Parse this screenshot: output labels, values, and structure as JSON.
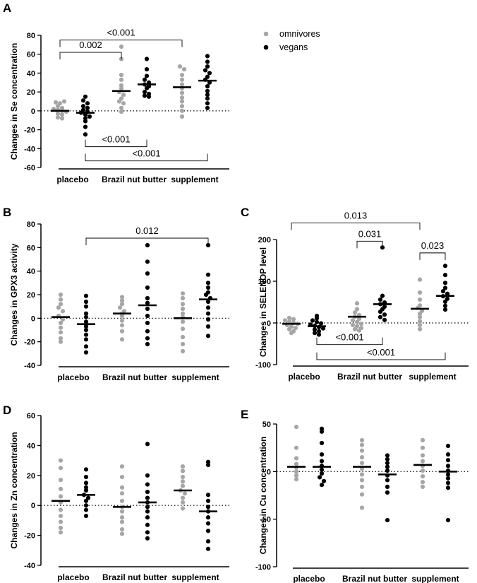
{
  "legend": {
    "entries": [
      {
        "label": "omnivores",
        "color": "#a6a6a6"
      },
      {
        "label": "vegans",
        "color": "#000000"
      }
    ]
  },
  "chart_data": [
    {
      "panel": "A",
      "type": "scatter",
      "ylabel": "Changes in Se concentration",
      "ylim": [
        -60,
        80
      ],
      "yticks": [
        -60,
        -40,
        -20,
        0,
        20,
        40,
        60,
        80
      ],
      "categories": [
        "placebo",
        "Brazil nut butter",
        "supplement"
      ],
      "series": [
        {
          "name": "omnivores",
          "color": "#a6a6a6",
          "medians": [
            0,
            21,
            25
          ],
          "points": [
            [
              9,
              8,
              5,
              3,
              2,
              1,
              0,
              -1,
              -3,
              -4,
              -7,
              -8,
              10
            ],
            [
              68,
              55,
              38,
              33,
              27,
              24,
              20,
              17,
              13,
              10,
              8,
              3,
              -1
            ],
            [
              47,
              44,
              38,
              33,
              28,
              24,
              19,
              14,
              10,
              5,
              0,
              -6
            ]
          ]
        },
        {
          "name": "vegans",
          "color": "#000000",
          "medians": [
            -2,
            28,
            32
          ],
          "points": [
            [
              15,
              11,
              8,
              5,
              3,
              1,
              -1,
              -2,
              -4,
              -6,
              -8,
              -11,
              -17,
              -25
            ],
            [
              55,
              44,
              37,
              33,
              30,
              28,
              26,
              24,
              20,
              18,
              16,
              15
            ],
            [
              58,
              52,
              47,
              43,
              40,
              36,
              33,
              30,
              26,
              21,
              17,
              13,
              8,
              3
            ]
          ]
        }
      ],
      "annotations": [
        {
          "text": "<0.001",
          "from": [
            0,
            0
          ],
          "to": [
            2,
            0
          ],
          "y": 75,
          "side": "top"
        },
        {
          "text": "0.002",
          "from": [
            0,
            0
          ],
          "to": [
            1,
            0
          ],
          "y": 62,
          "side": "top"
        },
        {
          "text": "<0.001",
          "from": [
            0,
            1
          ],
          "to": [
            1,
            1
          ],
          "y": -38,
          "side": "bottom"
        },
        {
          "text": "<0.001",
          "from": [
            0,
            1
          ],
          "to": [
            2,
            1
          ],
          "y": -53,
          "side": "bottom"
        }
      ]
    },
    {
      "panel": "B",
      "type": "scatter",
      "ylabel": "Changes in GPX3 activity",
      "ylim": [
        -40,
        80
      ],
      "yticks": [
        -40,
        -20,
        0,
        20,
        40,
        60,
        80
      ],
      "categories": [
        "placebo",
        "Brazil nut butter",
        "supplement"
      ],
      "series": [
        {
          "name": "omnivores",
          "color": "#a6a6a6",
          "medians": [
            1,
            4,
            0
          ],
          "points": [
            [
              20,
              16,
              12,
              9,
              6,
              2,
              -1,
              -4,
              -8,
              -12,
              -17,
              -20
            ],
            [
              18,
              15,
              12,
              9,
              6,
              4,
              2,
              -2,
              -6,
              -11,
              -18
            ],
            [
              21,
              17,
              12,
              8,
              4,
              1,
              -3,
              -9,
              -16,
              -22,
              -28
            ]
          ]
        },
        {
          "name": "vegans",
          "color": "#000000",
          "medians": [
            -5,
            11,
            16
          ],
          "points": [
            [
              19,
              14,
              10,
              4,
              1,
              -3,
              -7,
              -10,
              -14,
              -18,
              -24,
              -29
            ],
            [
              62,
              48,
              38,
              26,
              17,
              13,
              8,
              2,
              -4,
              -11,
              -17,
              -22
            ],
            [
              62,
              37,
              30,
              26,
              22,
              20,
              17,
              14,
              9,
              4,
              -1,
              -7,
              -15
            ]
          ]
        }
      ],
      "annotations": [
        {
          "text": "0.012",
          "from": [
            0,
            1
          ],
          "to": [
            2,
            1
          ],
          "y": 68,
          "side": "top"
        }
      ]
    },
    {
      "panel": "C",
      "type": "scatter",
      "ylabel": "Changes in SELENOP level",
      "ylim": [
        -100,
        200
      ],
      "yticks": [
        -100,
        0,
        100,
        200
      ],
      "categories": [
        "placebo",
        "Brazil nut butter",
        "supplement"
      ],
      "series": [
        {
          "name": "omnivores",
          "color": "#a6a6a6",
          "medians": [
            -2,
            15,
            34
          ],
          "points": [
            [
              12,
              9,
              6,
              3,
              0,
              -2,
              -5,
              -9,
              -12,
              -15,
              -20,
              -24
            ],
            [
              47,
              33,
              25,
              19,
              15,
              10,
              6,
              2,
              -2,
              -5,
              -8,
              -12,
              -15,
              -18
            ],
            [
              104,
              73,
              56,
              42,
              36,
              29,
              22,
              14,
              4,
              -5,
              -15
            ]
          ]
        },
        {
          "name": "vegans",
          "color": "#000000",
          "medians": [
            -8,
            45,
            65
          ],
          "points": [
            [
              17,
              11,
              6,
              2,
              -1,
              -4,
              -7,
              -10,
              -13,
              -16,
              -20,
              -24,
              -28
            ],
            [
              181,
              65,
              56,
              49,
              45,
              39,
              33,
              27,
              20,
              14,
              7
            ],
            [
              137,
              115,
              96,
              84,
              76,
              70,
              64,
              58,
              51,
              41,
              32
            ]
          ]
        }
      ],
      "annotations": [
        {
          "text": "0.013",
          "from": [
            0,
            0
          ],
          "to": [
            2,
            0
          ],
          "y": 240,
          "side": "top"
        },
        {
          "text": "0.031",
          "from": [
            1,
            0
          ],
          "to": [
            1,
            1
          ],
          "y": 196,
          "side": "top"
        },
        {
          "text": "0.023",
          "from": [
            2,
            0
          ],
          "to": [
            2,
            1
          ],
          "y": 168,
          "side": "top"
        },
        {
          "text": "<0.001",
          "from": [
            0,
            1
          ],
          "to": [
            1,
            1
          ],
          "y": -52,
          "side": "bottom"
        },
        {
          "text": "<0.001",
          "from": [
            0,
            1
          ],
          "to": [
            2,
            1
          ],
          "y": -88,
          "side": "bottom"
        }
      ]
    },
    {
      "panel": "D",
      "type": "scatter",
      "ylabel": "Changes in Zn concentration",
      "ylim": [
        -40,
        60
      ],
      "yticks": [
        -40,
        -20,
        0,
        20,
        40,
        60
      ],
      "categories": [
        "placebo",
        "Brazil nut butter",
        "supplement"
      ],
      "series": [
        {
          "name": "omnivores",
          "color": "#a6a6a6",
          "medians": [
            3,
            -1,
            10
          ],
          "points": [
            [
              30,
              25,
              17,
              11,
              6,
              2,
              -3,
              -7,
              -11,
              -15,
              -18
            ],
            [
              26,
              19,
              12,
              8,
              3,
              -1,
              -4,
              -8,
              -11,
              -16,
              -19
            ],
            [
              26,
              23,
              19,
              16,
              13,
              10,
              8,
              5,
              2,
              -2
            ]
          ]
        },
        {
          "name": "vegans",
          "color": "#000000",
          "medians": [
            7,
            2,
            -4
          ],
          "points": [
            [
              24,
              19,
              15,
              12,
              10,
              7,
              5,
              3,
              0,
              -3,
              -7
            ],
            [
              41,
              20,
              14,
              9,
              5,
              2,
              -1,
              -4,
              -8,
              -13,
              -18,
              -22
            ],
            [
              29,
              27,
              7,
              3,
              -1,
              -4,
              -8,
              -12,
              -17,
              -24,
              -29
            ]
          ]
        }
      ],
      "annotations": []
    },
    {
      "panel": "E",
      "type": "scatter",
      "ylabel": "Changes in Cu concentration",
      "ylim": [
        -100,
        50
      ],
      "yticks": [
        -100,
        -50,
        0,
        50
      ],
      "categories": [
        "placebo",
        "Brazil nut butter",
        "supplement"
      ],
      "series": [
        {
          "name": "omnivores",
          "color": "#a6a6a6",
          "medians": [
            5,
            5,
            7
          ],
          "points": [
            [
              47,
              25,
              14,
              8,
              4,
              0,
              -4,
              -8
            ],
            [
              33,
              28,
              22,
              15,
              9,
              3,
              -3,
              -9,
              -16,
              -24,
              -38
            ],
            [
              33,
              25,
              17,
              11,
              6,
              1,
              -5,
              -11,
              -16
            ]
          ]
        },
        {
          "name": "vegans",
          "color": "#000000",
          "medians": [
            5,
            -3,
            0
          ],
          "points": [
            [
              45,
              42,
              30,
              18,
              11,
              6,
              2,
              -2,
              -6,
              -10,
              -14
            ],
            [
              17,
              13,
              9,
              5,
              1,
              -4,
              -9,
              -16,
              -22,
              -51
            ],
            [
              27,
              18,
              12,
              6,
              1,
              -3,
              -7,
              -12,
              -17,
              -51
            ]
          ]
        }
      ],
      "annotations": []
    }
  ]
}
